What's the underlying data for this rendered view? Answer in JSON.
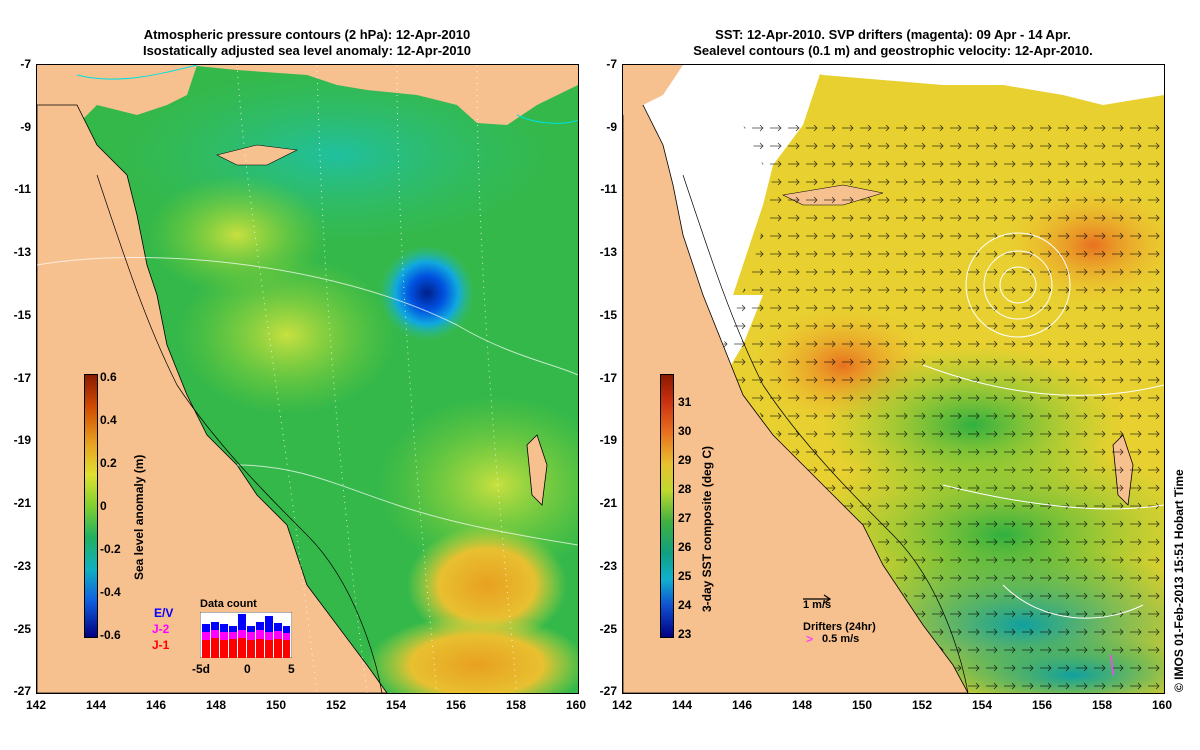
{
  "left_panel": {
    "title_line1": "Atmospheric pressure contours (2 hPa): 12-Apr-2010",
    "title_line2": "Isostatically adjusted sea level anomaly: 12-Apr-2010",
    "colorbar_label": "Sea level anomaly (m)",
    "colorbar_ticks": [
      "0.6",
      "0.4",
      "0.2",
      "0",
      "-0.2",
      "-0.4",
      "-0.6"
    ],
    "data_count": {
      "title": "Data count",
      "satellites": [
        "E/V",
        "J-2",
        "J-1"
      ],
      "satellite_colors": [
        "#0000ff",
        "#ff00ff",
        "#ff0000"
      ],
      "x_ticks": [
        "-5d",
        "0",
        "5"
      ]
    }
  },
  "right_panel": {
    "title_line1": "SST: 12-Apr-2010. SVP drifters (magenta): 09 Apr - 14 Apr.",
    "title_line2": "Sealevel contours (0.1 m) and geostrophic velocity: 12-Apr-2010.",
    "colorbar_label": "3-day SST composite (deg C)",
    "colorbar_ticks": [
      "31",
      "30",
      "29",
      "28",
      "27",
      "26",
      "25",
      "24",
      "23"
    ],
    "velocity_scale_label": "1 m/s",
    "drifters_label": "Drifters (24hr)",
    "drifters_scale_label": "0.5 m/s"
  },
  "lat_ticks": [
    "-7",
    "-9",
    "-11",
    "-13",
    "-15",
    "-17",
    "-19",
    "-21",
    "-23",
    "-25",
    "-27"
  ],
  "lon_ticks": [
    "142",
    "144",
    "146",
    "148",
    "150",
    "152",
    "154",
    "156",
    "158",
    "160"
  ],
  "credit": "© IMOS 01-Feb-2013 15:51 Hobart Time",
  "colors": {
    "land": "#f7c08f",
    "sea_green": "#3fbf3f",
    "eddy_blue": "#0040d0"
  }
}
